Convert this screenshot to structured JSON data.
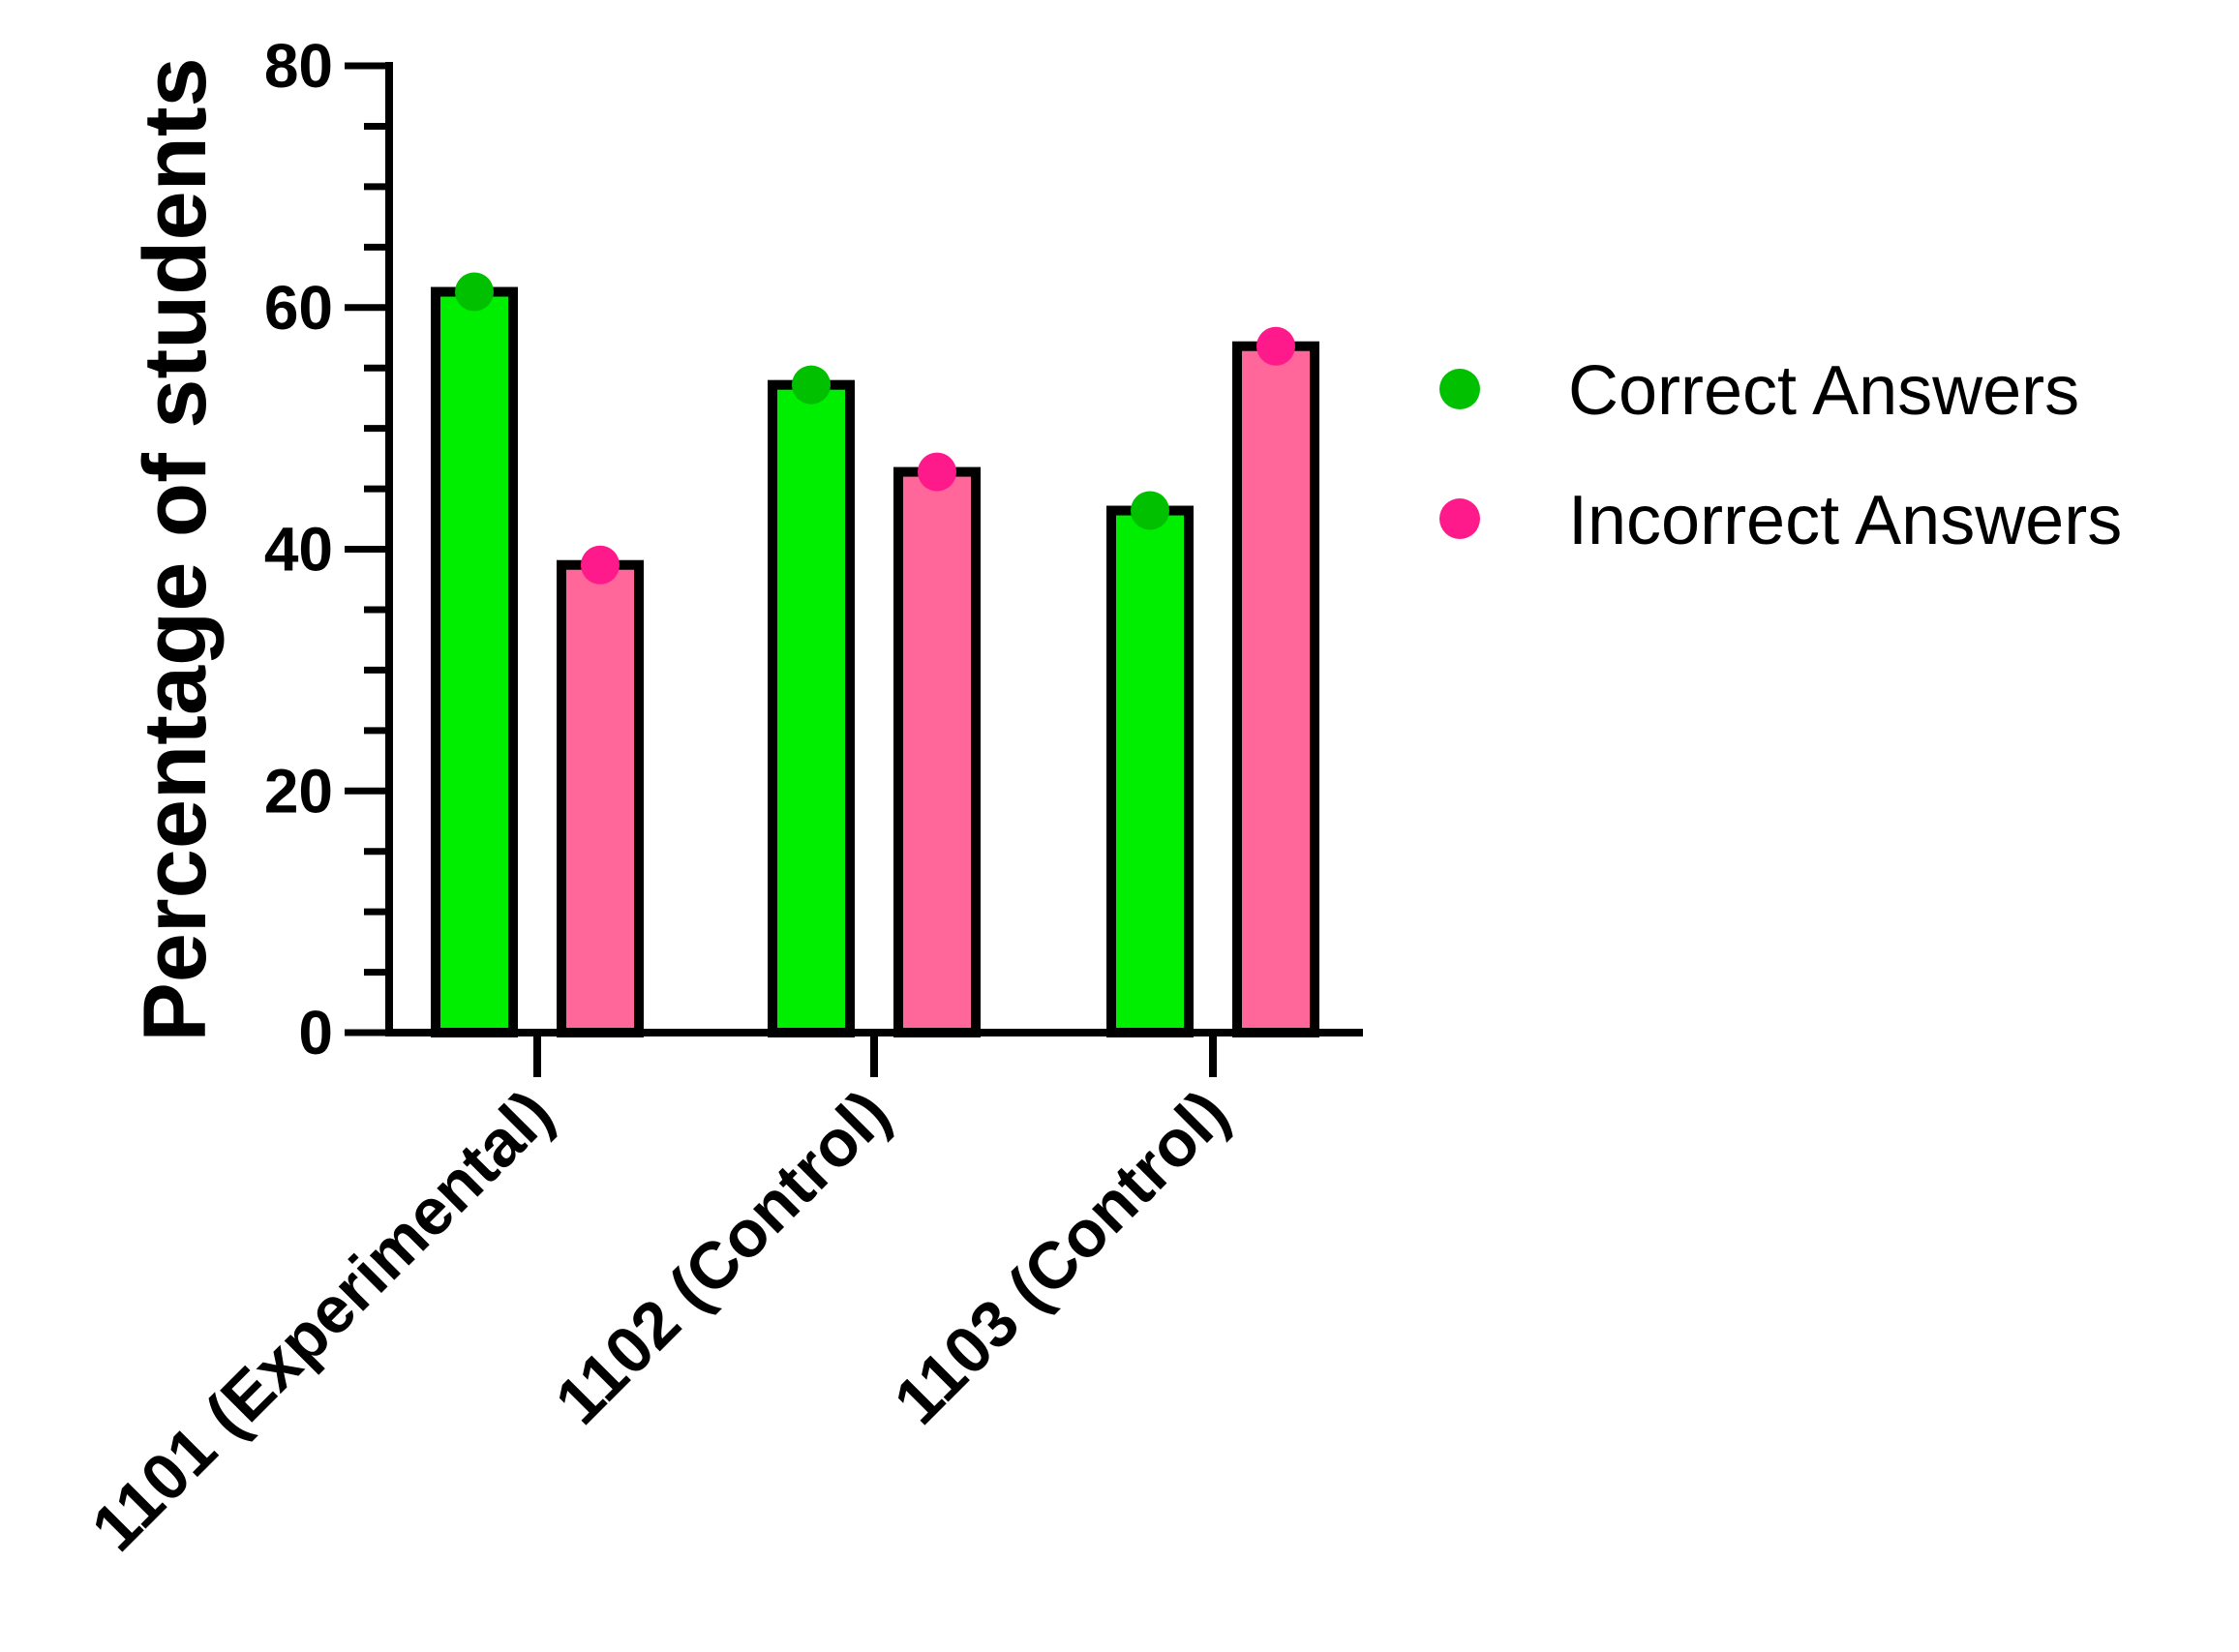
{
  "chart_data": {
    "type": "bar",
    "ylabel": "Percentage of students",
    "xlabel": "",
    "categories": [
      "1101 (Experimental)",
      "1102 (Control)",
      "1103 (Control)"
    ],
    "series": [
      {
        "name": "Correct Answers",
        "values": [
          61.3,
          53.6,
          43.2
        ],
        "bar_color": "#00ee00",
        "point_color": "#00c000"
      },
      {
        "name": "Incorrect Answers",
        "values": [
          38.7,
          46.4,
          56.8
        ],
        "bar_color": "#ff6699",
        "point_color": "#ff1a8c"
      }
    ],
    "ylim": [
      0,
      80
    ],
    "yticks": [
      "0",
      "20",
      "40",
      "60",
      "80"
    ],
    "grid": false,
    "legend_position": "right"
  }
}
